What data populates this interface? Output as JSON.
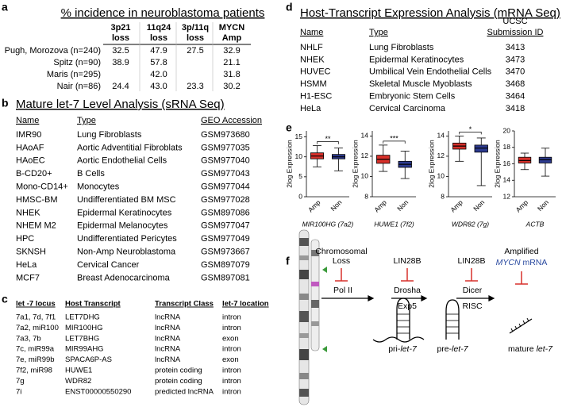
{
  "panel_labels": [
    "a",
    "b",
    "c",
    "d",
    "e",
    "f"
  ],
  "table_a": {
    "title": "% incidence in neuroblastoma patients",
    "headers": [
      [
        "3p21",
        "loss"
      ],
      [
        "11q24",
        "loss"
      ],
      [
        "3p/11q",
        "loss"
      ],
      [
        "MYCN",
        "Amp"
      ]
    ],
    "rows": [
      {
        "label": "Pugh, Morozova (n=240)",
        "cells": [
          "32.5",
          "47.9",
          "27.5",
          "32.9"
        ]
      },
      {
        "label": "Spitz (n=90)",
        "cells": [
          "38.9",
          "57.8",
          null,
          "21.1"
        ]
      },
      {
        "label": "Maris (n=295)",
        "cells": [
          null,
          "42.0",
          null,
          "31.8"
        ]
      },
      {
        "label": "Nair (n=86)",
        "cells": [
          "24.4",
          "43.0",
          "23.3",
          "30.2"
        ]
      }
    ]
  },
  "table_b": {
    "title": "Mature let-7 Level Analysis (sRNA Seq)",
    "headers": [
      "Name",
      "Type",
      "GEO Accession"
    ],
    "rows": [
      [
        "IMR90",
        "Lung Fibroblasts",
        "GSM973680"
      ],
      [
        "HAoAF",
        "Aortic Adventitial Fibroblats",
        "GSM977035"
      ],
      [
        "HAoEC",
        "Aortic Endothelial Cells",
        "GSM977040"
      ],
      [
        "B-CD20+",
        "B Cells",
        "GSM977043"
      ],
      [
        "Mono-CD14+",
        "Monocytes",
        "GSM977044"
      ],
      [
        "HMSC-BM",
        "Undifferentiated BM MSC",
        "GSM977028"
      ],
      [
        "NHEK",
        "Epidermal Keratinocytes",
        "GSM897086"
      ],
      [
        "NHEM M2",
        "Epidermal Melanocytes",
        "GSM977047"
      ],
      [
        "HPC",
        "Undifferentiated Pericytes",
        "GSM977049"
      ],
      [
        "SKNSH",
        "Non-Amp Neuroblastoma",
        "GSM973667"
      ],
      [
        "HeLa",
        "Cervical Cancer",
        "GSM897079"
      ],
      [
        "MCF7",
        "Breast Adenocarcinoma",
        "GSM897081"
      ]
    ]
  },
  "table_c": {
    "headers": [
      "let -7 locus",
      "Host Transcript",
      "Transcript Class",
      "let-7 location"
    ],
    "rows": [
      [
        "7a1, 7d, 7f1",
        "LET7DHG",
        "lncRNA",
        "intron"
      ],
      [
        "7a2, miR100",
        "MIR100HG",
        "lncRNA",
        "intron"
      ],
      [
        "7a3, 7b",
        "LET7BHG",
        "lncRNA",
        "exon"
      ],
      [
        "7c, miR99a",
        "MIR99AHG",
        "lncRNA",
        "intron"
      ],
      [
        "7e, miR99b",
        "SPACA6P-AS",
        "lncRNA",
        "exon"
      ],
      [
        "7f2, miR98",
        "HUWE1",
        "protein coding",
        "intron"
      ],
      [
        "7g",
        "WDR82",
        "protein coding",
        "intron"
      ],
      [
        "7i",
        "ENST00000550290",
        "predicted lncRNA",
        "intron"
      ]
    ]
  },
  "table_d": {
    "title": "Host-Transcript Expression Analysis (mRNA Seq)",
    "headers": [
      "Name",
      "Type",
      [
        "UCSC",
        "Submission ID"
      ]
    ],
    "rows": [
      [
        "NHLF",
        "Lung Fibroblasts",
        "3413"
      ],
      [
        "NHEK",
        "Epidermal Keratinocytes",
        "3473"
      ],
      [
        "HUVEC",
        "Umbilical Vein Endothelial Cells",
        "3470"
      ],
      [
        "HSMM",
        "Skeletal Muscle Myoblasts",
        "3468"
      ],
      [
        "H1-ESC",
        "Embryonic Stem Cells",
        "3464"
      ],
      [
        "HeLa",
        "Cervical Carcinoma",
        "3418"
      ]
    ]
  },
  "chart_data": [
    {
      "type": "box",
      "ylabel": "2log Expression",
      "xlabel": "MIR100HG (7a2)",
      "categories": [
        "Amp",
        "Non"
      ],
      "colors": [
        "#d7302a",
        "#2c3a8f"
      ],
      "boxes": [
        {
          "min": 7.5,
          "q1": 9.5,
          "median": 10.2,
          "q3": 11,
          "max": 12.8
        },
        {
          "min": 6.5,
          "q1": 9.5,
          "median": 10,
          "q3": 10.6,
          "max": 12.2
        }
      ],
      "ylim": [
        0,
        16.5
      ],
      "yticks": [
        0,
        5,
        10,
        15
      ],
      "significance": "**"
    },
    {
      "type": "box",
      "ylabel": "2log Expression",
      "xlabel": "HUWE1 (7f2)",
      "categories": [
        "Amp",
        "Non"
      ],
      "colors": [
        "#d7302a",
        "#2c3a8f"
      ],
      "boxes": [
        {
          "min": 10.5,
          "q1": 11.3,
          "median": 11.7,
          "q3": 12.1,
          "max": 13.1
        },
        {
          "min": 9.8,
          "q1": 10.9,
          "median": 11.2,
          "q3": 11.5,
          "max": 12.5
        }
      ],
      "ylim": [
        8,
        14.5
      ],
      "yticks": [
        8,
        10,
        12,
        14
      ],
      "significance": "***"
    },
    {
      "type": "box",
      "ylabel": "2log Expression",
      "xlabel": "WDR82 (7g)",
      "categories": [
        "Amp",
        "Non"
      ],
      "colors": [
        "#d7302a",
        "#2c3a8f"
      ],
      "boxes": [
        {
          "min": 11.5,
          "q1": 12.7,
          "median": 13,
          "q3": 13.3,
          "max": 14
        },
        {
          "min": 9.1,
          "q1": 12.4,
          "median": 12.8,
          "q3": 13.1,
          "max": 13.8
        }
      ],
      "ylim": [
        8,
        14.5
      ],
      "yticks": [
        8,
        10,
        12,
        14
      ],
      "significance": "*"
    },
    {
      "type": "box",
      "ylabel": "2log Expression",
      "xlabel": "ACTB",
      "categories": [
        "Amp",
        "Non"
      ],
      "colors": [
        "#d7302a",
        "#2c3a8f"
      ],
      "boxes": [
        {
          "min": 15.3,
          "q1": 16.1,
          "median": 16.4,
          "q3": 16.8,
          "max": 17.3
        },
        {
          "min": 14.5,
          "q1": 16.1,
          "median": 16.5,
          "q3": 16.8,
          "max": 17.9
        }
      ],
      "ylim": [
        12,
        20
      ],
      "yticks": [
        12,
        14,
        16,
        18,
        20
      ]
    }
  ],
  "diagram_f": {
    "chromosomal_loss": [
      "Chromosomal",
      "Loss"
    ],
    "lin28b_1": "LIN28B",
    "lin28b_2": "LIN28B",
    "amplified": [
      "Amplified",
      "MYCN",
      "mRNA"
    ],
    "pol2": "Pol II",
    "drosha": "Drosha",
    "exp5": "Exp5",
    "dicer": "Dicer",
    "risc": "RISC",
    "pri": [
      "pri-",
      "let-7"
    ],
    "pre": [
      "pre-",
      "let-7"
    ],
    "mature": [
      "mature ",
      "let-7"
    ]
  }
}
